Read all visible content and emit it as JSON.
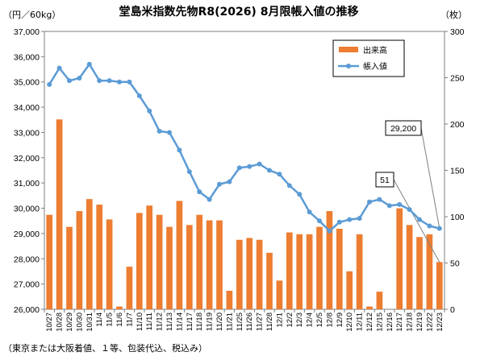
{
  "chart_data": {
    "type": "bar+line",
    "title": "堂島米指数先物R8(2026) 8月限帳入値の推移",
    "left_unit": "（円／60kg）",
    "right_unit": "（枚）",
    "footnote": "（東京または大阪着値、１等、包装代込、税込み）",
    "ylim_left": [
      26000,
      37000
    ],
    "ylim_right": [
      0,
      300
    ],
    "left_ticks": [
      "26,000",
      "27,000",
      "28,000",
      "29,000",
      "30,000",
      "31,000",
      "32,000",
      "33,000",
      "34,000",
      "35,000",
      "36,000",
      "37,000"
    ],
    "right_ticks": [
      "0",
      "50",
      "100",
      "150",
      "200",
      "250",
      "300"
    ],
    "categories": [
      "10/27",
      "10/28",
      "10/29",
      "10/30",
      "10/31",
      "11/4",
      "11/5",
      "11/6",
      "11/7",
      "11/10",
      "11/11",
      "11/12",
      "11/13",
      "11/14",
      "11/17",
      "11/18",
      "11/19",
      "11/20",
      "11/21",
      "11/25",
      "11/26",
      "11/27",
      "11/28",
      "12/1",
      "12/2",
      "12/3",
      "12/4",
      "12/5",
      "12/8",
      "12/9",
      "12/10",
      "12/11",
      "12/12",
      "12/15",
      "12/16",
      "12/17",
      "12/18",
      "12/19",
      "12/22",
      "12/23"
    ],
    "series": [
      {
        "name": "出来高",
        "kind": "bar",
        "axis": "right",
        "color": "#ED7D31",
        "values": [
          102,
          205,
          89,
          106,
          119,
          113,
          97,
          3,
          46,
          104,
          112,
          102,
          89,
          117,
          91,
          102,
          96,
          96,
          20,
          75,
          77,
          75,
          61,
          31,
          83,
          81,
          81,
          89,
          106,
          87,
          41,
          81,
          3,
          19,
          0,
          109,
          91,
          78,
          81,
          51
        ]
      },
      {
        "name": "帳入値",
        "kind": "line",
        "axis": "left",
        "color": "#5B9BD5",
        "values": [
          34900,
          35550,
          35050,
          35150,
          35700,
          35050,
          35050,
          35000,
          35000,
          34450,
          33850,
          33050,
          33000,
          32300,
          31450,
          30650,
          30350,
          30950,
          31050,
          31600,
          31650,
          31750,
          31500,
          31350,
          30900,
          30550,
          29850,
          29500,
          29100,
          29450,
          29550,
          29600,
          30250,
          30350,
          30100,
          30150,
          29950,
          29550,
          29300,
          29200
        ]
      }
    ],
    "legend": {
      "position": "top-right"
    },
    "grid": false,
    "annotations": [
      {
        "text": "29,200",
        "target": "帳入値 12/23"
      },
      {
        "text": "51",
        "target": "出来高 12/23"
      }
    ]
  }
}
